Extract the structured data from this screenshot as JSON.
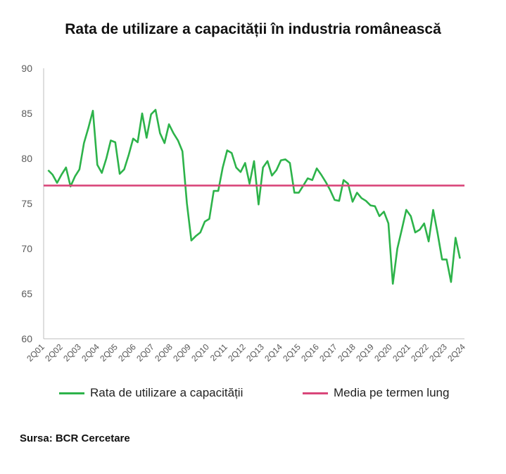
{
  "chart_data": {
    "type": "line",
    "title": "Rata de utilizare a capacității în industria românească",
    "ylim": [
      60,
      90
    ],
    "yticks": [
      60,
      65,
      70,
      75,
      80,
      85,
      90
    ],
    "xtick_labels": [
      "2Q01",
      "2Q02",
      "2Q03",
      "2Q04",
      "2Q05",
      "2Q06",
      "2Q07",
      "2Q08",
      "2Q09",
      "2Q10",
      "2Q11",
      "2Q12",
      "2Q13",
      "2Q14",
      "2Q15",
      "2Q16",
      "2Q17",
      "2Q18",
      "2Q19",
      "2Q20",
      "2Q21",
      "2Q22",
      "2Q23",
      "2Q24"
    ],
    "series": [
      {
        "name": "Rata de utilizare a capacității",
        "color": "#2db34a",
        "values": [
          78.7,
          78.2,
          77.3,
          78.2,
          79.0,
          76.9,
          78.0,
          78.8,
          81.7,
          83.4,
          85.3,
          79.3,
          78.4,
          80.0,
          82.0,
          81.8,
          78.3,
          78.8,
          80.4,
          82.2,
          81.8,
          85.0,
          82.3,
          84.9,
          85.4,
          82.8,
          81.7,
          83.8,
          82.8,
          82.0,
          80.8,
          75.0,
          70.9,
          71.4,
          71.8,
          73.0,
          73.3,
          76.4,
          76.4,
          79.0,
          80.9,
          80.6,
          79.0,
          78.5,
          79.5,
          77.2,
          79.7,
          74.9,
          79.0,
          79.7,
          78.1,
          78.7,
          79.8,
          79.9,
          79.5,
          76.2,
          76.2,
          77.0,
          77.8,
          77.6,
          78.9,
          78.2,
          77.4,
          76.5,
          75.4,
          75.3,
          77.6,
          77.2,
          75.2,
          76.2,
          75.6,
          75.3,
          74.8,
          74.7,
          73.6,
          74.1,
          72.8,
          66.1,
          70.0,
          72.1,
          74.3,
          73.6,
          71.8,
          72.1,
          72.8,
          70.8,
          74.3,
          71.7,
          68.8,
          68.8,
          66.3,
          71.2,
          68.9
        ]
      },
      {
        "name": "Media pe termen lung",
        "color": "#d9467a",
        "value": 77.0
      }
    ],
    "legend_position": "bottom",
    "grid": false
  },
  "source": "Sursa: BCR Cercetare"
}
